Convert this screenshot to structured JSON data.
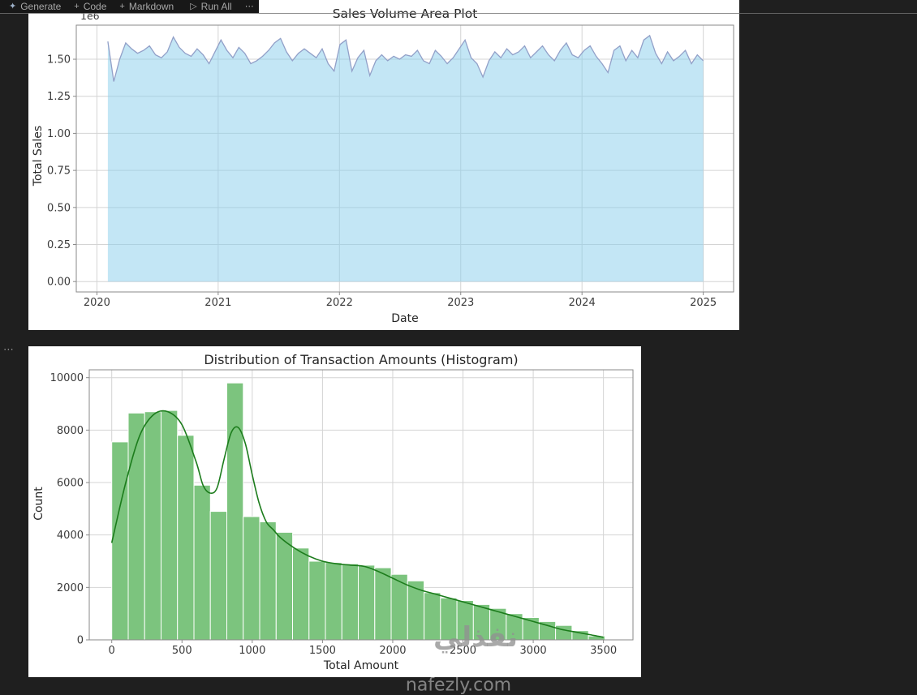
{
  "toolbar": {
    "generate_label": "Generate",
    "code_label": "Code",
    "markdown_label": "Markdown",
    "run_all_label": "Run All"
  },
  "icons": {
    "sparkle": "✦",
    "plus": "+",
    "play": "▷",
    "ellipsis": "⋯",
    "cell_more": "⋯"
  },
  "watermark": {
    "arabic": "نفذلي",
    "site": "nafezly.com"
  },
  "colors": {
    "page_bg": "#1f1f1f",
    "toolbar_bg": "#181818",
    "panel_bg": "#ffffff",
    "grid": "#d4d4d4",
    "spine": "#8a8a8a",
    "tick_text": "#3b3b3b",
    "area_fill": "rgba(135,206,235,0.5)",
    "area_line": "#92a0c8",
    "hist_bar": "#7cc47e",
    "hist_bar_edge": "#ffffff",
    "kde_line": "#1c7c1c"
  },
  "chart_data": [
    {
      "type": "area",
      "title": "Sales Volume Area Plot",
      "xlabel": "Date",
      "ylabel": "Total Sales",
      "offset_text": "1e6",
      "legend": "none",
      "grid": true,
      "x_ticks": [
        2020,
        2021,
        2022,
        2023,
        2024,
        2025
      ],
      "y_ticks": [
        0.0,
        0.25,
        0.5,
        0.75,
        1.0,
        1.25,
        1.5
      ],
      "y_tick_labels": [
        "0.00",
        "0.25",
        "0.50",
        "0.75",
        "1.00",
        "1.25",
        "1.50"
      ],
      "xlim": [
        2019.83,
        2025.25
      ],
      "ylim": [
        -0.07,
        1.73
      ],
      "unit": 1000000,
      "x_start": 2020.09,
      "x_end": 2025.0,
      "values_1e6": [
        1.62,
        1.35,
        1.5,
        1.61,
        1.57,
        1.54,
        1.56,
        1.59,
        1.53,
        1.51,
        1.55,
        1.65,
        1.58,
        1.54,
        1.52,
        1.57,
        1.53,
        1.47,
        1.55,
        1.63,
        1.56,
        1.51,
        1.58,
        1.54,
        1.47,
        1.49,
        1.52,
        1.56,
        1.61,
        1.64,
        1.55,
        1.49,
        1.54,
        1.57,
        1.54,
        1.51,
        1.57,
        1.47,
        1.42,
        1.6,
        1.63,
        1.42,
        1.51,
        1.56,
        1.39,
        1.49,
        1.53,
        1.49,
        1.52,
        1.5,
        1.53,
        1.52,
        1.56,
        1.49,
        1.47,
        1.56,
        1.52,
        1.47,
        1.51,
        1.57,
        1.63,
        1.51,
        1.47,
        1.38,
        1.49,
        1.55,
        1.51,
        1.57,
        1.53,
        1.55,
        1.59,
        1.51,
        1.55,
        1.59,
        1.53,
        1.49,
        1.56,
        1.61,
        1.53,
        1.51,
        1.56,
        1.59,
        1.52,
        1.47,
        1.41,
        1.56,
        1.59,
        1.49,
        1.56,
        1.51,
        1.63,
        1.66,
        1.54,
        1.47,
        1.55,
        1.49,
        1.52,
        1.56,
        1.47,
        1.53,
        1.49
      ]
    },
    {
      "type": "histogram",
      "title": "Distribution of Transaction Amounts (Histogram)",
      "xlabel": "Total Amount",
      "ylabel": "Count",
      "grid": true,
      "x_ticks": [
        0,
        500,
        1000,
        1500,
        2000,
        2500,
        3000,
        3500
      ],
      "y_ticks": [
        0,
        2000,
        4000,
        6000,
        8000,
        10000
      ],
      "xlim": [
        -160,
        3710
      ],
      "ylim": [
        0,
        10300
      ],
      "bin_start": 0,
      "bin_width": 117,
      "bar_counts": [
        7550,
        8650,
        8700,
        8750,
        7800,
        5900,
        4900,
        9800,
        4700,
        4500,
        4100,
        3500,
        3000,
        2950,
        2900,
        2850,
        2750,
        2500,
        2250,
        1800,
        1600,
        1500,
        1350,
        1200,
        1000,
        850,
        700,
        550,
        350,
        150
      ],
      "kde": {
        "x": [
          0,
          100,
          200,
          300,
          400,
          500,
          600,
          650,
          700,
          750,
          800,
          850,
          900,
          950,
          1000,
          1050,
          1100,
          1150,
          1200,
          1300,
          1400,
          1500,
          1600,
          1700,
          1800,
          1900,
          2000,
          2100,
          2200,
          2300,
          2400,
          2500,
          2600,
          2700,
          2800,
          2900,
          3000,
          3100,
          3200,
          3300,
          3400,
          3500
        ],
        "y": [
          3700,
          6000,
          7800,
          8600,
          8700,
          8200,
          6800,
          5900,
          5600,
          5800,
          6900,
          7900,
          8100,
          7500,
          6300,
          5200,
          4500,
          4200,
          3900,
          3500,
          3200,
          3000,
          2900,
          2850,
          2800,
          2600,
          2350,
          2100,
          1900,
          1750,
          1600,
          1450,
          1300,
          1150,
          1000,
          850,
          700,
          550,
          400,
          300,
          200,
          100
        ]
      }
    }
  ]
}
